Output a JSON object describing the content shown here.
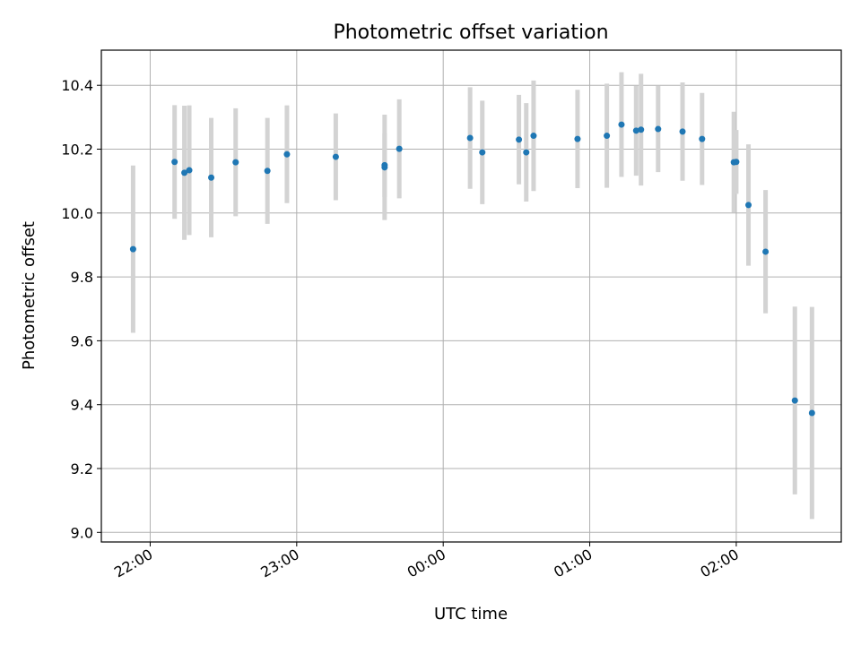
{
  "chart_data": {
    "type": "scatter",
    "title": "Photometric offset variation",
    "xlabel": "UTC time",
    "ylabel": "Photometric offset",
    "x_ticks": [
      "22:00",
      "23:00",
      "00:00",
      "01:00",
      "02:00"
    ],
    "y_ticks": [
      "9.0",
      "9.2",
      "9.4",
      "9.6",
      "9.8",
      "10.0",
      "10.2",
      "10.4"
    ],
    "xlim": [
      "21:40",
      "02:43"
    ],
    "ylim": [
      8.97,
      10.51
    ],
    "grid": true,
    "colors": {
      "points": "#1f77b4",
      "errorbars": "#d3d3d3"
    },
    "series": [
      {
        "points": [
          {
            "x": "21:53",
            "y": 9.887,
            "yerr": 0.262
          },
          {
            "x": "22:10",
            "y": 10.16,
            "yerr": 0.178
          },
          {
            "x": "22:14",
            "y": 10.126,
            "yerr": 0.21
          },
          {
            "x": "22:16",
            "y": 10.134,
            "yerr": 0.203
          },
          {
            "x": "22:25",
            "y": 10.111,
            "yerr": 0.187
          },
          {
            "x": "22:35",
            "y": 10.159,
            "yerr": 0.169
          },
          {
            "x": "22:48",
            "y": 10.132,
            "yerr": 0.166
          },
          {
            "x": "22:56",
            "y": 10.184,
            "yerr": 0.153
          },
          {
            "x": "23:16",
            "y": 10.176,
            "yerr": 0.136
          },
          {
            "x": "23:36",
            "y": 10.143,
            "yerr": 0.165
          },
          {
            "x": "23:36",
            "y": 10.15,
            "yerr": 0.1
          },
          {
            "x": "23:42",
            "y": 10.201,
            "yerr": 0.155
          },
          {
            "x": "00:11",
            "y": 10.235,
            "yerr": 0.159
          },
          {
            "x": "00:16",
            "y": 10.19,
            "yerr": 0.162
          },
          {
            "x": "00:31",
            "y": 10.23,
            "yerr": 0.14
          },
          {
            "x": "00:34",
            "y": 10.19,
            "yerr": 0.154
          },
          {
            "x": "00:37",
            "y": 10.242,
            "yerr": 0.173
          },
          {
            "x": "00:55",
            "y": 10.232,
            "yerr": 0.154
          },
          {
            "x": "01:07",
            "y": 10.242,
            "yerr": 0.163
          },
          {
            "x": "01:13",
            "y": 10.277,
            "yerr": 0.164
          },
          {
            "x": "01:19",
            "y": 10.258,
            "yerr": 0.141
          },
          {
            "x": "01:21",
            "y": 10.261,
            "yerr": 0.175
          },
          {
            "x": "01:28",
            "y": 10.263,
            "yerr": 0.135
          },
          {
            "x": "01:38",
            "y": 10.255,
            "yerr": 0.154
          },
          {
            "x": "01:46",
            "y": 10.232,
            "yerr": 0.144
          },
          {
            "x": "01:59",
            "y": 10.159,
            "yerr": 0.158
          },
          {
            "x": "02:00",
            "y": 10.16,
            "yerr": 0.1
          },
          {
            "x": "02:05",
            "y": 10.025,
            "yerr": 0.19
          },
          {
            "x": "02:12",
            "y": 9.879,
            "yerr": 0.193
          },
          {
            "x": "02:24",
            "y": 9.413,
            "yerr": 0.294
          },
          {
            "x": "02:31",
            "y": 9.374,
            "yerr": 0.332
          }
        ]
      }
    ]
  }
}
